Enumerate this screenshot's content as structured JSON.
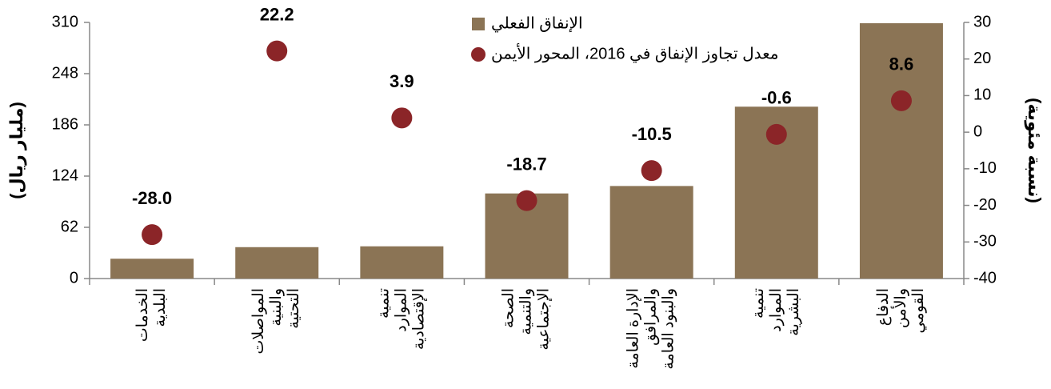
{
  "chart_data": {
    "type": "bar_scatter",
    "categories": [
      [
        "الخدمات",
        "البلدية"
      ],
      [
        "المواصلات",
        "والبنية",
        "التحتية"
      ],
      [
        "تنمية",
        "الموارد",
        "الإقتصادية"
      ],
      [
        "الصحة",
        "والتنمية",
        "الإجتماعية"
      ],
      [
        "الإدارة العامة",
        "والمرافق",
        "والبنود العامة"
      ],
      [
        "تنمية",
        "الموارد",
        "البشرية"
      ],
      [
        "الدفاع",
        "والأمن",
        "القومي"
      ]
    ],
    "series": [
      {
        "name": "الإنفاق الفعلي",
        "color": "#8b7455",
        "type": "bar",
        "values": [
          24,
          38,
          39,
          103,
          112,
          208,
          309
        ]
      },
      {
        "name": "معدل تجاوز الإنفاق في 2016، المحور الأيمن",
        "color": "#8b2528",
        "type": "scatter",
        "axis": "y2",
        "values": [
          -28.0,
          22.2,
          3.9,
          -18.7,
          -10.5,
          -0.6,
          8.6
        ],
        "value_labels": [
          "-28.0",
          "22.2",
          "3.9",
          "-18.7",
          "-10.5",
          "-0.6",
          "8.6"
        ]
      }
    ],
    "y_label": "(مليار ريال)",
    "y2_label": "(نسبة مئوية)",
    "ylim": [
      0,
      310
    ],
    "yticks": [
      0,
      62,
      124,
      186,
      248,
      310
    ],
    "y2lim": [
      -40,
      30
    ],
    "y2ticks": [
      -40,
      -30,
      -20,
      -10,
      0,
      10,
      20,
      30
    ]
  }
}
